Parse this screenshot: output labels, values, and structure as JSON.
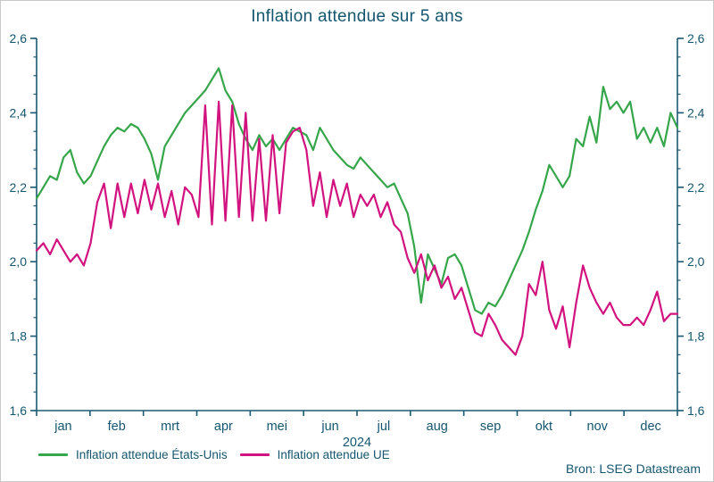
{
  "title": "Inflation attendue sur 5 ans",
  "source": "Bron: LSEG Datastream",
  "colors": {
    "text": "#14566f",
    "axis": "#1b5a74",
    "background": "#ffffff",
    "border": "#c9c9c9",
    "series_us": "#36a64a",
    "series_eu": "#d2127e"
  },
  "chart_data": {
    "type": "line",
    "title": "Inflation attendue sur 5 ans",
    "x_axis": {
      "year_label": "2024",
      "months": [
        "jan",
        "feb",
        "mrt",
        "apr",
        "mei",
        "jun",
        "jul",
        "aug",
        "sep",
        "okt",
        "nov",
        "dec"
      ]
    },
    "y_axis": {
      "min": 1.6,
      "max": 2.6,
      "major_ticks": [
        1.6,
        1.8,
        2.0,
        2.2,
        2.4,
        2.6
      ],
      "tick_labels": [
        "1,6",
        "1,8",
        "2,0",
        "2,2",
        "2,4",
        "2,6"
      ],
      "minor_step": 0.05,
      "mirrored_right": true
    },
    "grid": false,
    "legend_position": "bottom-left",
    "series": [
      {
        "name": "Inflation attendue  États-Unis",
        "color": "#36a64a",
        "values": [
          2.17,
          2.2,
          2.23,
          2.22,
          2.28,
          2.3,
          2.24,
          2.21,
          2.23,
          2.27,
          2.31,
          2.34,
          2.36,
          2.35,
          2.37,
          2.36,
          2.33,
          2.29,
          2.22,
          2.31,
          2.34,
          2.37,
          2.4,
          2.42,
          2.44,
          2.46,
          2.49,
          2.52,
          2.46,
          2.43,
          2.37,
          2.33,
          2.3,
          2.34,
          2.31,
          2.33,
          2.3,
          2.33,
          2.36,
          2.35,
          2.34,
          2.3,
          2.36,
          2.33,
          2.3,
          2.28,
          2.26,
          2.25,
          2.28,
          2.26,
          2.24,
          2.22,
          2.2,
          2.21,
          2.17,
          2.13,
          2.04,
          1.89,
          2.02,
          1.98,
          1.94,
          2.01,
          2.02,
          1.99,
          1.93,
          1.87,
          1.86,
          1.89,
          1.88,
          1.91,
          1.95,
          1.99,
          2.03,
          2.08,
          2.14,
          2.19,
          2.26,
          2.23,
          2.2,
          2.23,
          2.33,
          2.31,
          2.39,
          2.32,
          2.47,
          2.41,
          2.43,
          2.4,
          2.43,
          2.33,
          2.36,
          2.32,
          2.36,
          2.31,
          2.4,
          2.36
        ]
      },
      {
        "name": "Inflation attendue UE",
        "color": "#d2127e",
        "values": [
          2.03,
          2.05,
          2.02,
          2.06,
          2.03,
          2.0,
          2.02,
          1.99,
          2.05,
          2.16,
          2.21,
          2.09,
          2.21,
          2.12,
          2.21,
          2.13,
          2.22,
          2.14,
          2.21,
          2.12,
          2.19,
          2.1,
          2.2,
          2.18,
          2.12,
          2.42,
          2.1,
          2.43,
          2.11,
          2.42,
          2.12,
          2.4,
          2.11,
          2.33,
          2.11,
          2.34,
          2.13,
          2.32,
          2.35,
          2.36,
          2.3,
          2.15,
          2.24,
          2.12,
          2.22,
          2.15,
          2.21,
          2.12,
          2.18,
          2.15,
          2.18,
          2.12,
          2.16,
          2.1,
          2.08,
          2.01,
          1.97,
          2.02,
          1.95,
          1.99,
          1.93,
          1.96,
          1.9,
          1.93,
          1.87,
          1.81,
          1.8,
          1.86,
          1.83,
          1.79,
          1.77,
          1.75,
          1.8,
          1.94,
          1.91,
          2.0,
          1.87,
          1.82,
          1.88,
          1.77,
          1.89,
          1.99,
          1.93,
          1.89,
          1.86,
          1.89,
          1.85,
          1.83,
          1.83,
          1.85,
          1.83,
          1.87,
          1.92,
          1.84,
          1.86,
          1.86
        ]
      }
    ]
  }
}
